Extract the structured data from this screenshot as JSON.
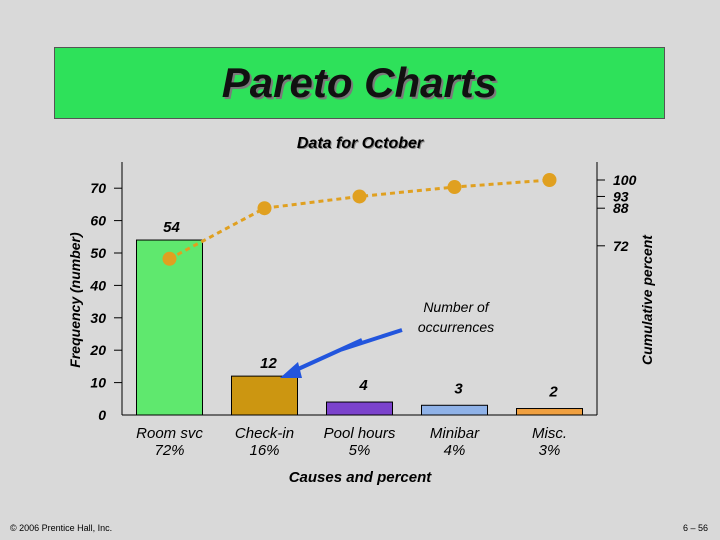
{
  "slide": {
    "title": "Pareto Charts",
    "subtitle": "Data for October",
    "footer_left": "© 2006 Prentice Hall, Inc.",
    "footer_right": "6 – 56"
  },
  "colors": {
    "background": "#d9d9d9",
    "title_box": "#2ee15a",
    "line": "#e0a020",
    "arrow": "#2255dd"
  },
  "chart_data": {
    "type": "bar",
    "title": "",
    "xlabel": "Causes and percent",
    "ylabel": "Frequency (number)",
    "y2label": "Cumulative percent",
    "ylim": [
      0,
      70
    ],
    "y_ticks": [
      0,
      10,
      20,
      30,
      40,
      50,
      60,
      70
    ],
    "y2_ticks": [
      {
        "label": "72",
        "value": 72
      },
      {
        "label": "88",
        "value": 88
      },
      {
        "label": "93",
        "value": 93
      },
      {
        "label": "100",
        "value": 100
      }
    ],
    "categories": [
      {
        "name": "Room svc",
        "percent": "72%",
        "color": "#5fe86e"
      },
      {
        "name": "Check-in",
        "percent": "16%",
        "color": "#cc9611"
      },
      {
        "name": "Pool hours",
        "percent": "5%",
        "color": "#7b42cc"
      },
      {
        "name": "Minibar",
        "percent": "4%",
        "color": "#8fb2e8"
      },
      {
        "name": "Misc.",
        "percent": "3%",
        "color": "#f0a040"
      }
    ],
    "values": [
      54,
      12,
      4,
      3,
      2
    ],
    "data_labels": [
      "54",
      "12",
      "4",
      "3",
      "2"
    ],
    "cumulative": [
      72,
      88,
      93,
      97,
      100
    ],
    "annotation": "Number of occurrences",
    "grid": false
  }
}
